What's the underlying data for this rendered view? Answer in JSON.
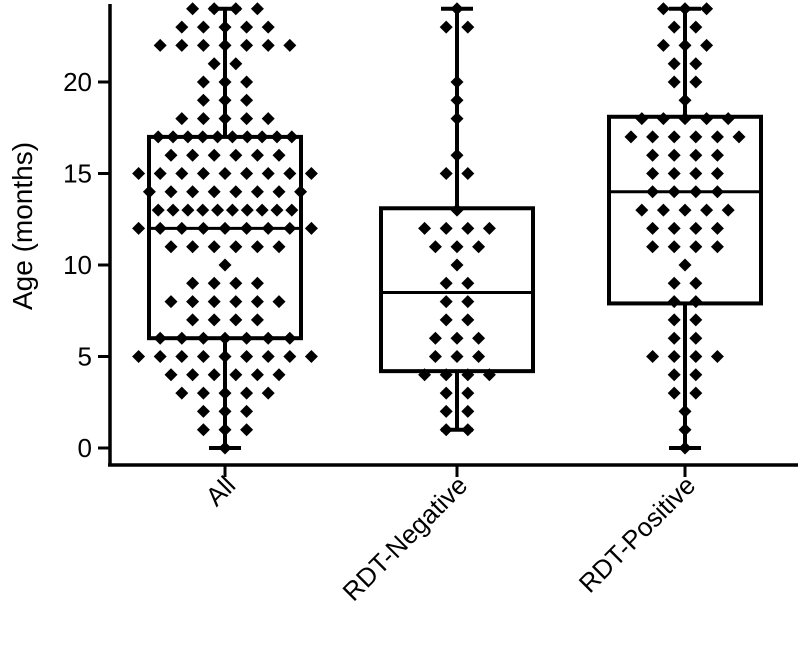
{
  "chart_data": {
    "type": "box",
    "ylabel": "Age (months)",
    "xlabel": "",
    "ylim": [
      -1,
      24
    ],
    "yticks": [
      0,
      5,
      10,
      15,
      20
    ],
    "grid": false,
    "categories": [
      "All",
      "RDT-Negative",
      "RDT-Positive"
    ],
    "boxes": [
      {
        "name": "All",
        "min": 0,
        "q1": 6,
        "median": 12,
        "q3": 17,
        "max": 24,
        "points": [
          24,
          24,
          24,
          24,
          23,
          23,
          23,
          23,
          23,
          22,
          22,
          22,
          22,
          22,
          22,
          22,
          21,
          21,
          20,
          20,
          20,
          19,
          19,
          19,
          18,
          18,
          18,
          18,
          18,
          17,
          17,
          17,
          17,
          17,
          17,
          17,
          17,
          17,
          17,
          16,
          16,
          16,
          16,
          16,
          16,
          15,
          15,
          15,
          15,
          15,
          15,
          15,
          15,
          15,
          14,
          14,
          14,
          14,
          14,
          14,
          14,
          14,
          13,
          13,
          13,
          13,
          13,
          13,
          13,
          13,
          13,
          13,
          12,
          12,
          12,
          12,
          12,
          12,
          12,
          12,
          12,
          11,
          11,
          11,
          11,
          11,
          11,
          10,
          9,
          9,
          9,
          9,
          8,
          8,
          8,
          8,
          8,
          8,
          7,
          7,
          7,
          7,
          6,
          6,
          6,
          6,
          6,
          6,
          6,
          5,
          5,
          5,
          5,
          5,
          5,
          5,
          5,
          5,
          4,
          4,
          4,
          4,
          4,
          4,
          3,
          3,
          3,
          3,
          3,
          2,
          2,
          2,
          1,
          1,
          1,
          0
        ]
      },
      {
        "name": "RDT-Negative",
        "min": 1,
        "q1": 4.2,
        "median": 8.5,
        "q3": 13.1,
        "max": 24,
        "points": [
          24,
          23,
          23,
          20,
          19,
          18,
          16,
          15,
          15,
          13,
          12,
          12,
          12,
          12,
          11,
          11,
          11,
          10,
          9,
          9,
          8,
          8,
          7,
          7,
          6,
          6,
          6,
          5,
          5,
          5,
          4,
          4,
          4,
          4,
          3,
          3,
          2,
          2,
          1,
          1
        ]
      },
      {
        "name": "RDT-Positive",
        "min": 0,
        "q1": 7.9,
        "median": 14,
        "q3": 18.1,
        "max": 24,
        "points": [
          24,
          24,
          24,
          23,
          23,
          22,
          22,
          22,
          21,
          21,
          20,
          20,
          19,
          18,
          18,
          18,
          18,
          18,
          17,
          17,
          17,
          17,
          17,
          17,
          16,
          16,
          16,
          16,
          15,
          15,
          15,
          15,
          14,
          14,
          14,
          14,
          13,
          13,
          13,
          13,
          13,
          12,
          12,
          12,
          12,
          11,
          11,
          11,
          11,
          10,
          9,
          9,
          8,
          8,
          7,
          7,
          6,
          6,
          5,
          5,
          5,
          5,
          4,
          4,
          3,
          3,
          2,
          1,
          0
        ]
      }
    ]
  }
}
